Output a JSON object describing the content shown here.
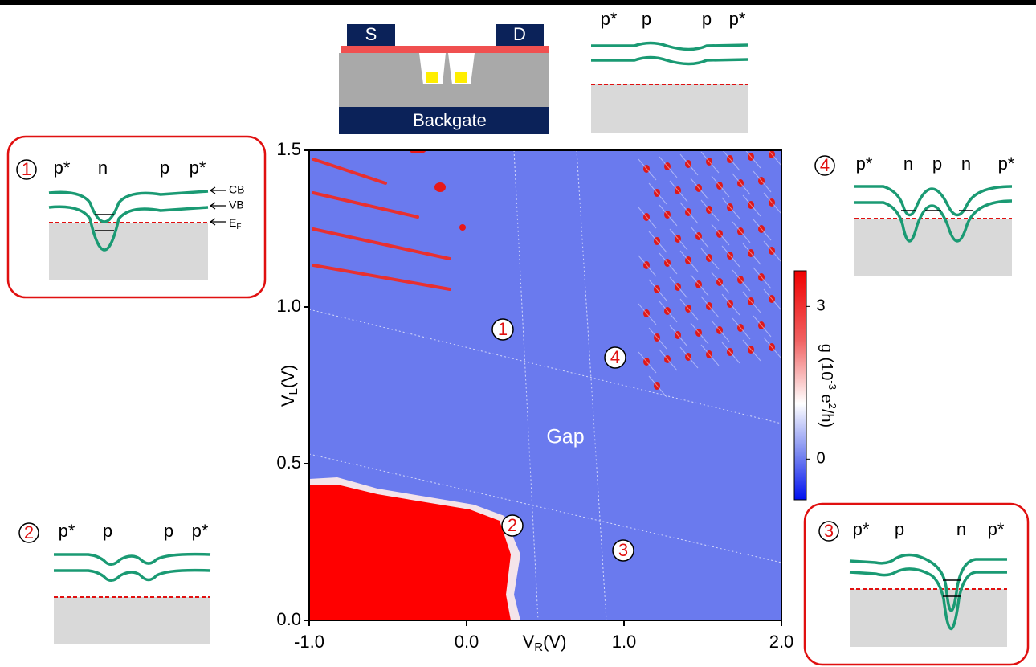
{
  "chart_data": {
    "type": "heatmap",
    "x_label": [
      "V",
      "R",
      "(V)"
    ],
    "y_label": [
      "V",
      "L",
      "(V)"
    ],
    "xlim": [
      -1,
      2
    ],
    "ylim": [
      0,
      1.5
    ],
    "xticks": [
      {
        "value": -1,
        "label": "-1.0"
      },
      {
        "value": 0,
        "label": "0.0"
      },
      {
        "value": 1,
        "label": "1.0"
      },
      {
        "value": 2,
        "label": "2.0"
      }
    ],
    "yticks": [
      {
        "value": 0,
        "label": "0.0"
      },
      {
        "value": 0.5,
        "label": "0.5"
      },
      {
        "value": 1,
        "label": "1.0"
      },
      {
        "value": 1.5,
        "label": "1.5"
      }
    ],
    "colorbar": {
      "label": [
        "g (10",
        "-3",
        " e",
        "2",
        "/h)"
      ],
      "lim": [
        -0.8,
        3.7
      ],
      "ticks": [
        0,
        3
      ]
    },
    "annotations": [
      "1",
      "4",
      "2",
      "3",
      "Gap"
    ]
  },
  "schematic": {
    "source": "S",
    "drain": "D",
    "gate": "Backgate"
  },
  "top_inset": {
    "labels": [
      "p*",
      "p",
      "p",
      "p*"
    ]
  },
  "inset1": {
    "number": "1",
    "labels": [
      "p*",
      "n",
      "p",
      "p*"
    ],
    "cb": "CB",
    "vb": "VB",
    "ef": [
      "E",
      "F"
    ]
  },
  "inset2": {
    "number": "2",
    "labels": [
      "p*",
      "p",
      "p",
      "p*"
    ]
  },
  "inset3": {
    "number": "3",
    "labels": [
      "p*",
      "p",
      "n",
      "p*"
    ]
  },
  "inset4": {
    "number": "4",
    "labels": [
      "p*",
      "n",
      "p",
      "n",
      "p*"
    ]
  }
}
